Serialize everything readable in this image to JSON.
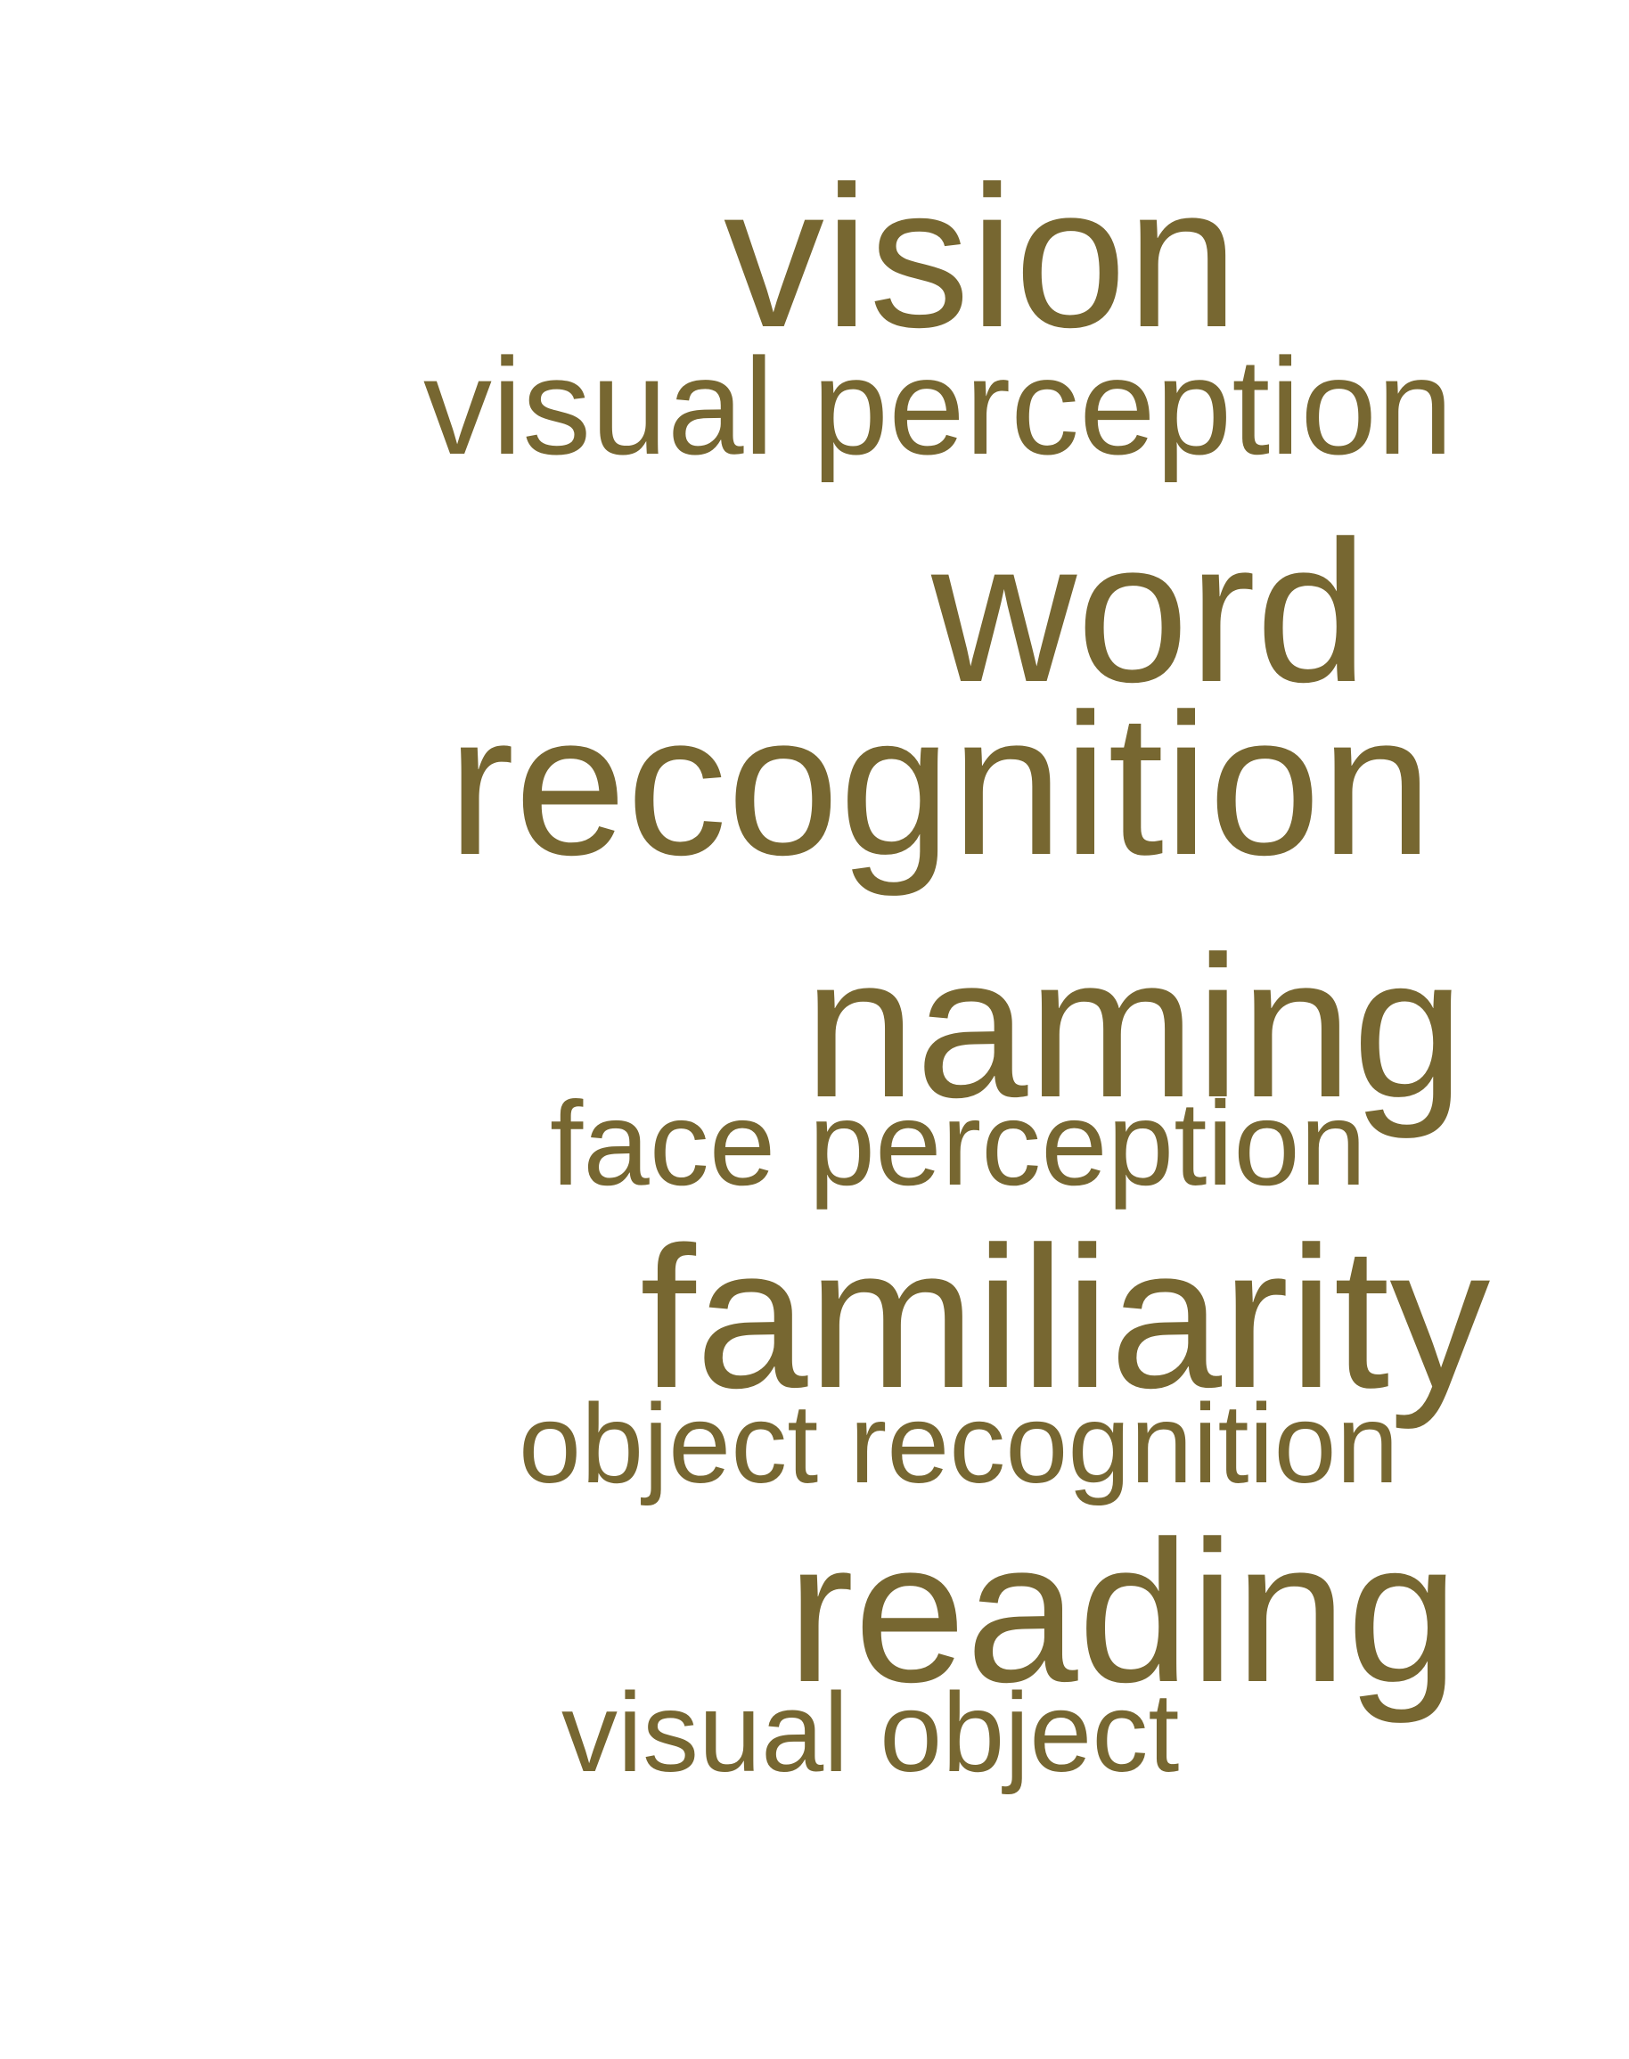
{
  "word_color": "#776731",
  "background_color": "#ffffff",
  "words": {
    "vision": "vision",
    "visual_perception": "visual perception",
    "word": "word",
    "recognition": "recognition",
    "naming": "naming",
    "face_perception": "face perception",
    "familiarity": "familiarity",
    "object_recognition": "object recognition",
    "reading": "reading",
    "visual_object": "visual object"
  }
}
